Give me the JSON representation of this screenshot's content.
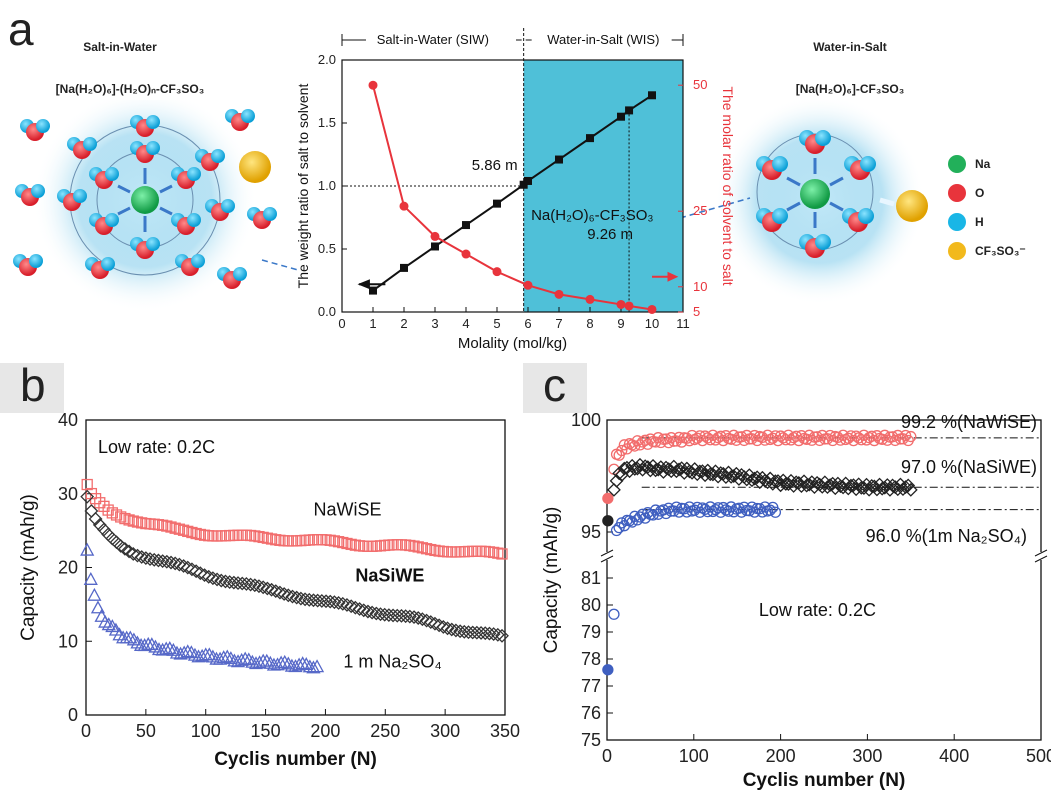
{
  "panel_a": {
    "letter": "a",
    "left_title": "Salt-in-Water",
    "left_formula": "[Na(H₂O)₆]-(H₂O)ₙ-CF₃SO₃",
    "right_title": "Water-in-Salt",
    "right_formula": "[Na(H₂O)₆]-CF₃SO₃",
    "legend": [
      {
        "label": "Na",
        "color": "#22b05a"
      },
      {
        "label": "O",
        "color": "#e8343c"
      },
      {
        "label": "H",
        "color": "#19b6e6"
      },
      {
        "label": "CF₃SO₃⁻",
        "color": "#f2b91c"
      }
    ]
  },
  "panel_b": {
    "letter": "b"
  },
  "panel_c": {
    "letter": "c"
  },
  "chart_data": [
    {
      "id": "a",
      "type": "line",
      "xlabel": "Molality (mol/kg)",
      "ylabel": "The weight ratio of salt to solvent",
      "y2label": "The molar ratio of solvent to salt",
      "xlim": [
        0,
        11
      ],
      "ylim": [
        0,
        2.0
      ],
      "y2lim": [
        5,
        55
      ],
      "xticks": [
        "0",
        "1",
        "2",
        "3",
        "4",
        "5",
        "6",
        "7",
        "8",
        "9",
        "10",
        "11"
      ],
      "yticks": [
        "0.0",
        "0.5",
        "1.0",
        "1.5",
        "2.0"
      ],
      "y2ticks": [
        "5",
        "10",
        "25",
        "50"
      ],
      "region_labels": [
        "Salt-in-Water (SIW)",
        "Water-in-Salt (WIS)"
      ],
      "wis_region": [
        5.86,
        11
      ],
      "annotations": [
        "5.86 m",
        "Na(H₂O)₆-CF₃SO₃",
        "9.26 m"
      ],
      "series": [
        {
          "axis": "left",
          "color": "#111111",
          "x": [
            1,
            2,
            3,
            4,
            5,
            5.86,
            6,
            7,
            8,
            9,
            9.26,
            10
          ],
          "y": [
            0.17,
            0.35,
            0.52,
            0.69,
            0.86,
            1.01,
            1.04,
            1.21,
            1.38,
            1.55,
            1.6,
            1.72
          ]
        },
        {
          "axis": "right",
          "color": "#e8343c",
          "x": [
            1,
            2,
            3,
            4,
            5,
            6,
            7,
            8,
            9,
            9.26,
            10
          ],
          "y": [
            50,
            26,
            20,
            16.5,
            13,
            10.3,
            8.5,
            7.5,
            6.5,
            6.2,
            5.5
          ]
        }
      ]
    },
    {
      "id": "b",
      "type": "scatter",
      "xlabel": "Cyclis number (N)",
      "ylabel": "Capacity (mAh/g)",
      "xlim": [
        0,
        350
      ],
      "ylim": [
        0,
        40
      ],
      "xticks": [
        "0",
        "50",
        "100",
        "150",
        "200",
        "250",
        "300",
        "350"
      ],
      "yticks": [
        "0",
        "10",
        "20",
        "30",
        "40"
      ],
      "annotation": "Low rate: 0.2C",
      "series": [
        {
          "name": "NaWiSE",
          "color": "#f26d6d",
          "marker": "square",
          "x": [
            1,
            5,
            10,
            20,
            30,
            40,
            50,
            75,
            100,
            125,
            150,
            175,
            200,
            225,
            250,
            275,
            300,
            325,
            348
          ],
          "y": [
            31,
            29.6,
            28.8,
            27.6,
            27.0,
            26.5,
            26.0,
            25.1,
            24.6,
            24.2,
            24.0,
            23.8,
            23.5,
            23.2,
            23.0,
            22.7,
            22.4,
            22.0,
            21.8
          ]
        },
        {
          "name": "NaSiWE",
          "color": "#333333",
          "marker": "diamond",
          "x": [
            1,
            5,
            10,
            20,
            30,
            40,
            50,
            75,
            100,
            125,
            150,
            175,
            200,
            225,
            250,
            275,
            300,
            325,
            348
          ],
          "y": [
            29.5,
            27.2,
            25.8,
            24.0,
            22.8,
            22.0,
            21.5,
            20.3,
            19.0,
            18.0,
            17.0,
            16.2,
            15.3,
            14.5,
            13.8,
            13.0,
            12.0,
            11.2,
            10.5
          ]
        },
        {
          "name": "1 m Na₂SO₄",
          "color": "#5668c8",
          "marker": "triangle",
          "x": [
            1,
            3,
            5,
            10,
            15,
            20,
            30,
            40,
            50,
            75,
            100,
            125,
            150,
            175,
            195
          ],
          "y": [
            22.5,
            19.5,
            17.0,
            14.5,
            13.0,
            12.0,
            10.8,
            10.0,
            9.5,
            8.6,
            8.0,
            7.5,
            7.1,
            6.8,
            6.6
          ]
        }
      ]
    },
    {
      "id": "c",
      "type": "scatter",
      "xlabel": "Cyclis number (N)",
      "ylabel": "Capacity (mAh/g)",
      "xlim": [
        0,
        500
      ],
      "ylim_upper": [
        95,
        100
      ],
      "ylim_lower": [
        75,
        81
      ],
      "axis_break": true,
      "xticks": [
        "0",
        "100",
        "200",
        "300",
        "400",
        "500"
      ],
      "yticks_upper": [
        "95",
        "100"
      ],
      "yticks_lower": [
        "75",
        "76",
        "77",
        "78",
        "79",
        "80",
        "81"
      ],
      "annotation": "Low rate: 0.2C",
      "series": [
        {
          "name": "99.2 %(NaWiSE)",
          "color": "#f26d6d",
          "reference": 99.2,
          "x": [
            1,
            10,
            20,
            40,
            60,
            80,
            100,
            150,
            200,
            250,
            300,
            350
          ],
          "y": [
            96.5,
            98.3,
            98.8,
            99.0,
            99.1,
            99.1,
            99.2,
            99.2,
            99.2,
            99.2,
            99.2,
            99.2
          ]
        },
        {
          "name": "97.0 %(NaSiWE)",
          "color": "#222222",
          "reference": 97.0,
          "x": [
            1,
            10,
            20,
            40,
            60,
            80,
            100,
            150,
            200,
            250,
            300,
            350
          ],
          "y": [
            95.5,
            97.3,
            97.8,
            97.9,
            97.8,
            97.8,
            97.7,
            97.5,
            97.2,
            97.1,
            97.0,
            97.0
          ]
        },
        {
          "name": "96.0 %(1m Na₂SO₄)",
          "color": "#3f5fc0",
          "reference": 96.0,
          "x": [
            1,
            10,
            20,
            40,
            60,
            80,
            100,
            150,
            195
          ],
          "y": [
            77.6,
            95.1,
            95.4,
            95.7,
            95.9,
            96.0,
            96.0,
            96.0,
            96.0
          ]
        }
      ]
    }
  ]
}
